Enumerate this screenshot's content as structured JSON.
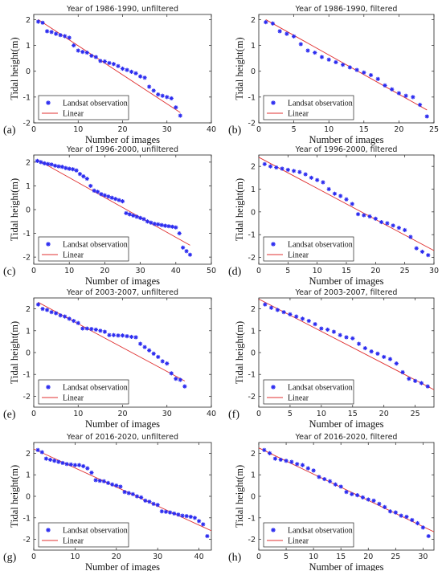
{
  "chart_data": [
    {
      "type": "scatter",
      "panel_label": "(a)",
      "title": "Year of 1986-1990, unfiltered",
      "xlabel": "Number of images",
      "ylabel": "Tidal height(m)",
      "xlim": [
        0,
        40
      ],
      "ylim": [
        -2,
        2.2
      ],
      "xticks": [
        0,
        10,
        20,
        30,
        40
      ],
      "yticks": [
        -2,
        -1,
        0,
        1,
        2
      ],
      "legend": [
        "Landsat observation",
        "Linear"
      ],
      "legend_position": "lower-left",
      "series": [
        {
          "name": "Landsat observation",
          "x": [
            1,
            2,
            3,
            4,
            5,
            6,
            7,
            8,
            9,
            10,
            11,
            12,
            13,
            14,
            15,
            16,
            17,
            18,
            19,
            20,
            21,
            22,
            23,
            24,
            25,
            26,
            27,
            28,
            29,
            30,
            31,
            32,
            33
          ],
          "y": [
            1.92,
            1.88,
            1.55,
            1.52,
            1.45,
            1.4,
            1.36,
            1.3,
            1.0,
            0.8,
            0.75,
            0.72,
            0.6,
            0.55,
            0.4,
            0.38,
            0.32,
            0.28,
            0.2,
            0.1,
            0.05,
            -0.02,
            -0.08,
            -0.2,
            -0.25,
            -0.6,
            -0.75,
            -0.9,
            -0.95,
            -1.0,
            -1.05,
            -1.4,
            -1.72
          ]
        },
        {
          "name": "Linear",
          "x": [
            1,
            33
          ],
          "y": [
            2.0,
            -1.6
          ]
        }
      ]
    },
    {
      "type": "scatter",
      "panel_label": "(b)",
      "title": "Year of 1986-1990, filtered",
      "xlabel": "Number of images",
      "ylabel": "Tidal height(m)",
      "xlim": [
        0,
        25
      ],
      "ylim": [
        -2,
        2.2
      ],
      "xticks": [
        0,
        5,
        10,
        15,
        20,
        25
      ],
      "yticks": [
        -2,
        -1,
        0,
        1,
        2
      ],
      "legend": [
        "Landsat observation",
        "Linear"
      ],
      "legend_position": "lower-left",
      "series": [
        {
          "name": "Landsat observation",
          "x": [
            1,
            2,
            3,
            4,
            5,
            6,
            7,
            8,
            9,
            10,
            11,
            12,
            13,
            14,
            15,
            16,
            17,
            18,
            19,
            20,
            21,
            22,
            23,
            24
          ],
          "y": [
            1.9,
            1.85,
            1.55,
            1.45,
            1.35,
            1.05,
            0.8,
            0.72,
            0.55,
            0.45,
            0.35,
            0.25,
            0.15,
            0.05,
            -0.05,
            -0.15,
            -0.3,
            -0.55,
            -0.7,
            -0.85,
            -0.95,
            -1.0,
            -1.3,
            -1.75
          ]
        },
        {
          "name": "Linear",
          "x": [
            1,
            24
          ],
          "y": [
            2.0,
            -1.5
          ]
        }
      ]
    },
    {
      "type": "scatter",
      "panel_label": "(c)",
      "title": "Year of 1996-2000, unfiltered",
      "xlabel": "Number of images",
      "ylabel": "Tidal height(m)",
      "xlim": [
        0,
        50
      ],
      "ylim": [
        -2.3,
        2.3
      ],
      "xticks": [
        0,
        10,
        20,
        30,
        40,
        50
      ],
      "yticks": [
        -2,
        -1,
        0,
        1,
        2
      ],
      "legend": [
        "Landsat observation",
        "Linear"
      ],
      "legend_position": "lower-left",
      "series": [
        {
          "name": "Landsat observation",
          "x": [
            1,
            2,
            3,
            4,
            5,
            6,
            7,
            8,
            9,
            10,
            11,
            12,
            13,
            14,
            15,
            16,
            17,
            18,
            19,
            20,
            21,
            22,
            23,
            24,
            25,
            26,
            27,
            28,
            29,
            30,
            31,
            32,
            33,
            34,
            35,
            36,
            37,
            38,
            39,
            40,
            41,
            42,
            43,
            44
          ],
          "y": [
            2.05,
            2.0,
            1.95,
            1.92,
            1.9,
            1.85,
            1.82,
            1.8,
            1.75,
            1.72,
            1.7,
            1.65,
            1.5,
            1.4,
            1.3,
            1.0,
            0.8,
            0.75,
            0.65,
            0.6,
            0.55,
            0.5,
            0.45,
            0.4,
            0.35,
            -0.15,
            -0.2,
            -0.25,
            -0.3,
            -0.35,
            -0.4,
            -0.5,
            -0.55,
            -0.6,
            -0.62,
            -0.65,
            -0.68,
            -0.7,
            -0.72,
            -0.75,
            -1.0,
            -1.6,
            -1.75,
            -1.9
          ]
        },
        {
          "name": "Linear",
          "x": [
            1,
            44
          ],
          "y": [
            2.1,
            -1.5
          ]
        }
      ]
    },
    {
      "type": "scatter",
      "panel_label": "(d)",
      "title": "Year of 1996-2000, filtered",
      "xlabel": "Number of images",
      "ylabel": "Tidal height(m)",
      "xlim": [
        0,
        30
      ],
      "ylim": [
        -2.3,
        2.5
      ],
      "xticks": [
        0,
        5,
        10,
        15,
        20,
        25,
        30
      ],
      "yticks": [
        -2,
        -1,
        0,
        1,
        2
      ],
      "legend": [
        "Landsat observation",
        "Linear"
      ],
      "legend_position": "lower-left",
      "series": [
        {
          "name": "Landsat observation",
          "x": [
            1,
            2,
            3,
            4,
            5,
            6,
            7,
            8,
            9,
            10,
            11,
            12,
            13,
            14,
            15,
            16,
            17,
            18,
            19,
            20,
            21,
            22,
            23,
            24,
            25,
            26,
            27,
            28,
            29
          ],
          "y": [
            2.1,
            2.0,
            1.95,
            1.9,
            1.85,
            1.8,
            1.75,
            1.65,
            1.5,
            1.4,
            1.3,
            1.0,
            0.8,
            0.7,
            0.55,
            0.35,
            -0.1,
            -0.15,
            -0.2,
            -0.3,
            -0.45,
            -0.5,
            -0.6,
            -0.7,
            -0.8,
            -1.1,
            -1.6,
            -1.75,
            -1.9
          ]
        },
        {
          "name": "Linear",
          "x": [
            0,
            30
          ],
          "y": [
            2.4,
            -1.7
          ]
        }
      ]
    },
    {
      "type": "scatter",
      "panel_label": "(e)",
      "title": "Year of 2003-2007, unfiltered",
      "xlabel": "Number of images",
      "ylabel": "Tidal height(m)",
      "xlim": [
        0,
        40
      ],
      "ylim": [
        -2.5,
        2.5
      ],
      "xticks": [
        0,
        10,
        20,
        30,
        40
      ],
      "yticks": [
        -2,
        -1,
        0,
        1,
        2
      ],
      "legend": [
        "Landsat observation",
        "Linear"
      ],
      "legend_position": "lower-left",
      "series": [
        {
          "name": "Landsat observation",
          "x": [
            1,
            2,
            3,
            4,
            5,
            6,
            7,
            8,
            9,
            10,
            11,
            12,
            13,
            14,
            15,
            16,
            17,
            18,
            19,
            20,
            21,
            22,
            23,
            24,
            25,
            26,
            27,
            28,
            29,
            30,
            31,
            32,
            33,
            34
          ],
          "y": [
            2.2,
            2.0,
            1.95,
            1.85,
            1.8,
            1.7,
            1.65,
            1.55,
            1.45,
            1.35,
            1.1,
            1.1,
            1.08,
            1.05,
            1.0,
            0.95,
            0.8,
            0.8,
            0.78,
            0.78,
            0.75,
            0.72,
            0.7,
            0.4,
            0.25,
            0.1,
            -0.05,
            -0.2,
            -0.4,
            -0.5,
            -0.95,
            -1.2,
            -1.25,
            -1.55
          ]
        },
        {
          "name": "Linear",
          "x": [
            1,
            34
          ],
          "y": [
            2.3,
            -1.3
          ]
        }
      ]
    },
    {
      "type": "scatter",
      "panel_label": "(f)",
      "title": "Year of 2003-2007, filtered",
      "xlabel": "Number of images",
      "ylabel": "Tidal height(m)",
      "xlim": [
        0,
        28
      ],
      "ylim": [
        -2.5,
        2.5
      ],
      "xticks": [
        0,
        5,
        10,
        15,
        20,
        25
      ],
      "yticks": [
        -2,
        -1,
        0,
        1,
        2
      ],
      "legend": [
        "Landsat observation",
        "Linear"
      ],
      "legend_position": "lower-left",
      "series": [
        {
          "name": "Landsat observation",
          "x": [
            1,
            2,
            3,
            4,
            5,
            6,
            7,
            8,
            9,
            10,
            11,
            12,
            13,
            14,
            15,
            16,
            17,
            18,
            19,
            20,
            21,
            22,
            23,
            24,
            25,
            26,
            27
          ],
          "y": [
            2.2,
            2.05,
            1.95,
            1.85,
            1.75,
            1.65,
            1.55,
            1.45,
            1.3,
            1.1,
            1.05,
            0.95,
            0.8,
            0.7,
            0.65,
            0.4,
            0.2,
            0.05,
            -0.05,
            -0.2,
            -0.3,
            -0.5,
            -0.9,
            -1.2,
            -1.3,
            -1.4,
            -1.55
          ]
        },
        {
          "name": "Linear",
          "x": [
            0,
            28
          ],
          "y": [
            2.45,
            -1.7
          ]
        }
      ]
    },
    {
      "type": "scatter",
      "panel_label": "(g)",
      "title": "Year of 2016-2020, unfiltered",
      "xlabel": "Number of images",
      "ylabel": "Tidal height(m)",
      "xlim": [
        0,
        43
      ],
      "ylim": [
        -2.5,
        2.5
      ],
      "xticks": [
        0,
        10,
        20,
        30,
        40
      ],
      "yticks": [
        -2,
        -1,
        0,
        1,
        2
      ],
      "legend": [
        "Landsat observation",
        "Linear"
      ],
      "legend_position": "lower-left",
      "series": [
        {
          "name": "Landsat observation",
          "x": [
            1,
            2,
            3,
            4,
            5,
            6,
            7,
            8,
            9,
            10,
            11,
            12,
            13,
            14,
            15,
            16,
            17,
            18,
            19,
            20,
            21,
            22,
            23,
            24,
            25,
            26,
            27,
            28,
            29,
            30,
            31,
            32,
            33,
            34,
            35,
            36,
            37,
            38,
            39,
            40,
            41,
            42
          ],
          "y": [
            2.15,
            2.05,
            1.75,
            1.7,
            1.65,
            1.6,
            1.55,
            1.5,
            1.48,
            1.45,
            1.45,
            1.4,
            1.3,
            1.1,
            0.75,
            0.72,
            0.7,
            0.62,
            0.55,
            0.5,
            0.45,
            0.2,
            0.15,
            0.1,
            0.0,
            -0.05,
            -0.2,
            -0.25,
            -0.35,
            -0.4,
            -0.7,
            -0.72,
            -0.75,
            -0.8,
            -0.85,
            -0.9,
            -0.92,
            -0.95,
            -1.0,
            -1.15,
            -1.3,
            -1.85
          ]
        },
        {
          "name": "Linear",
          "x": [
            0,
            43
          ],
          "y": [
            2.2,
            -1.6
          ]
        }
      ]
    },
    {
      "type": "scatter",
      "panel_label": "(h)",
      "title": "Year of 2016-2020, filtered",
      "xlabel": "Number of images",
      "ylabel": "Tidal height(m)",
      "xlim": [
        0,
        32
      ],
      "ylim": [
        -2.5,
        2.5
      ],
      "xticks": [
        0,
        5,
        10,
        15,
        20,
        25,
        30
      ],
      "yticks": [
        -2,
        -1,
        0,
        1,
        2
      ],
      "legend": [
        "Landsat observation",
        "Linear"
      ],
      "legend_position": "lower-left",
      "series": [
        {
          "name": "Landsat observation",
          "x": [
            1,
            2,
            3,
            4,
            5,
            6,
            7,
            8,
            9,
            10,
            11,
            12,
            13,
            14,
            15,
            16,
            17,
            18,
            19,
            20,
            21,
            22,
            23,
            24,
            25,
            26,
            27,
            28,
            29,
            30,
            31
          ],
          "y": [
            2.15,
            2.0,
            1.75,
            1.7,
            1.65,
            1.6,
            1.5,
            1.45,
            1.3,
            1.2,
            0.9,
            0.8,
            0.7,
            0.55,
            0.45,
            0.2,
            0.1,
            0.05,
            -0.05,
            -0.15,
            -0.2,
            -0.35,
            -0.5,
            -0.7,
            -0.75,
            -0.9,
            -0.95,
            -1.1,
            -1.25,
            -1.45,
            -1.85
          ]
        },
        {
          "name": "Linear",
          "x": [
            0,
            32
          ],
          "y": [
            2.25,
            -1.65
          ]
        }
      ]
    }
  ],
  "colors": {
    "marker": "#2b2bf0",
    "line": "#e03030",
    "axis": "#222222"
  }
}
